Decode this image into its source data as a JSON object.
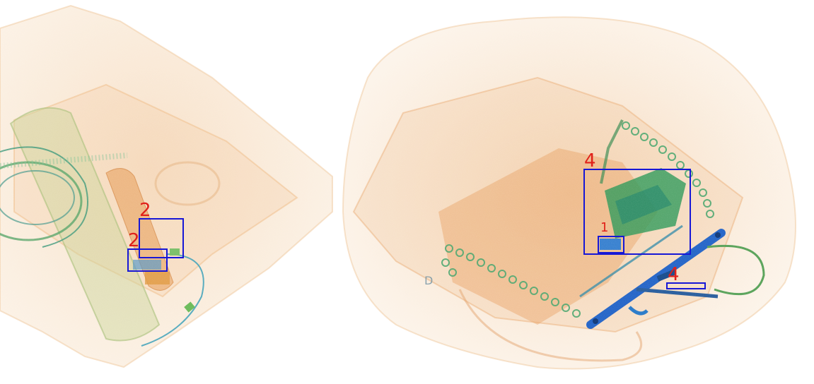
{
  "image": {
    "kind": "xray-baggage-scan",
    "palette": {
      "organic": "#e9a46a",
      "inorganic": "#6fae5a",
      "metal": "#2a66c9",
      "background": "#ffffff"
    }
  },
  "annotations": {
    "box_color": "#1717d6",
    "label_color": "#e0211a",
    "items": [
      {
        "label": "2"
      },
      {
        "label": "2"
      },
      {
        "label": "4"
      },
      {
        "label": "1"
      },
      {
        "label": "4"
      }
    ]
  }
}
